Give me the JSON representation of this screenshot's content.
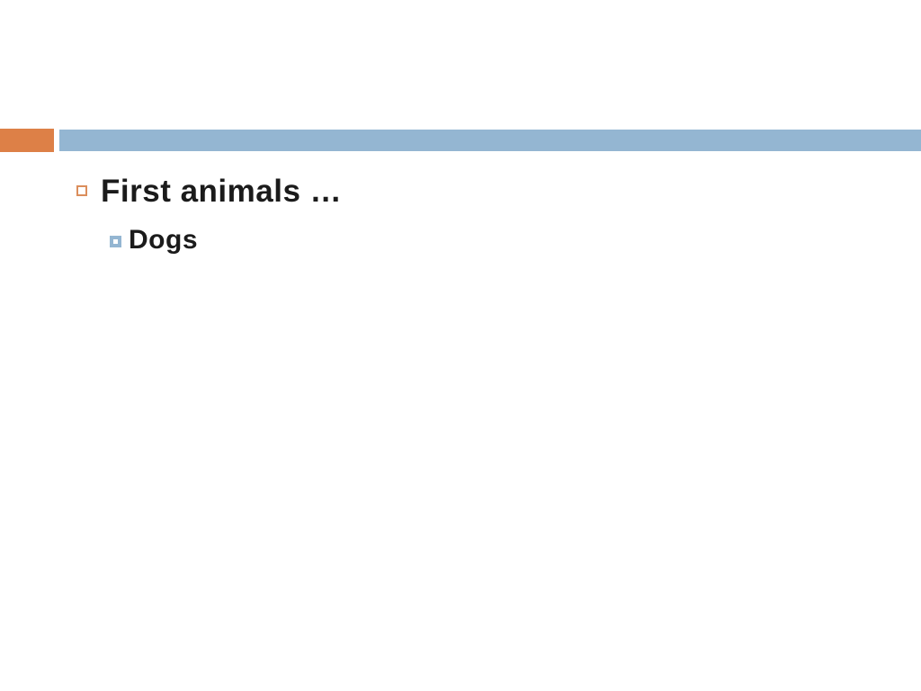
{
  "slide": {
    "colors": {
      "accent_orange": "#DD8047",
      "accent_orange_light": "#DB8E5C",
      "accent_blue": "#94B6D2",
      "text": "#1B1B1B",
      "background": "#FFFFFF"
    },
    "header": {
      "orange_block_icon": "orange-rectangle-accent",
      "blue_bar_icon": "blue-horizontal-band"
    },
    "bullets": [
      {
        "level": 1,
        "marker_icon": "hollow-orange-square-bullet",
        "text": "First animals …"
      },
      {
        "level": 2,
        "marker_icon": "filled-blue-square-bullet",
        "text": "Dogs"
      }
    ]
  }
}
